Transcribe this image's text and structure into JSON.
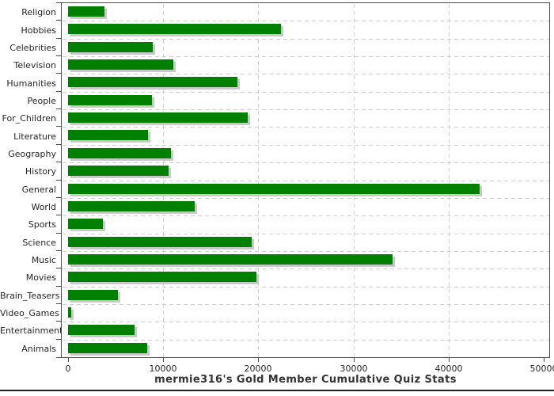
{
  "chart_data": {
    "type": "bar",
    "orientation": "horizontal",
    "title": "mermie316's Gold Member Cumulative Quiz Stats",
    "categories": [
      "Religion",
      "Hobbies",
      "Celebrities",
      "Television",
      "Humanities",
      "People",
      "For_Children",
      "Literature",
      "Geography",
      "History",
      "General",
      "World",
      "Sports",
      "Science",
      "Music",
      "Movies",
      "Brain_Teasers",
      "Video_Games",
      "Entertainment",
      "Animals"
    ],
    "values": [
      3800,
      22400,
      8900,
      11100,
      17800,
      8800,
      18900,
      8400,
      10800,
      10600,
      43300,
      13300,
      3700,
      19300,
      34100,
      19800,
      5200,
      300,
      7000,
      8300
    ],
    "xlabel": "",
    "ylabel": "",
    "xlim": [
      0,
      50000
    ],
    "x_ticks": [
      {
        "value": 0,
        "label": "0"
      },
      {
        "value": 10000,
        "label": "10000"
      },
      {
        "value": 20000,
        "label": "20000"
      },
      {
        "value": 30000,
        "label": "30000"
      },
      {
        "value": 40000,
        "label": "40000"
      },
      {
        "value": 50000,
        "label": "50000"
      }
    ],
    "grid": "dashed light-gray; vertical lines at value ticks, horizontal lines at category boundaries",
    "legend": "none",
    "colors": {
      "bar": "#008000",
      "bar_shadow": "#c9c9c9",
      "gridline": "#cfcfcf",
      "axis": "#4d4d4d",
      "tick_text": "#262626",
      "title_text": "#333333",
      "background": "#ffffff"
    }
  }
}
